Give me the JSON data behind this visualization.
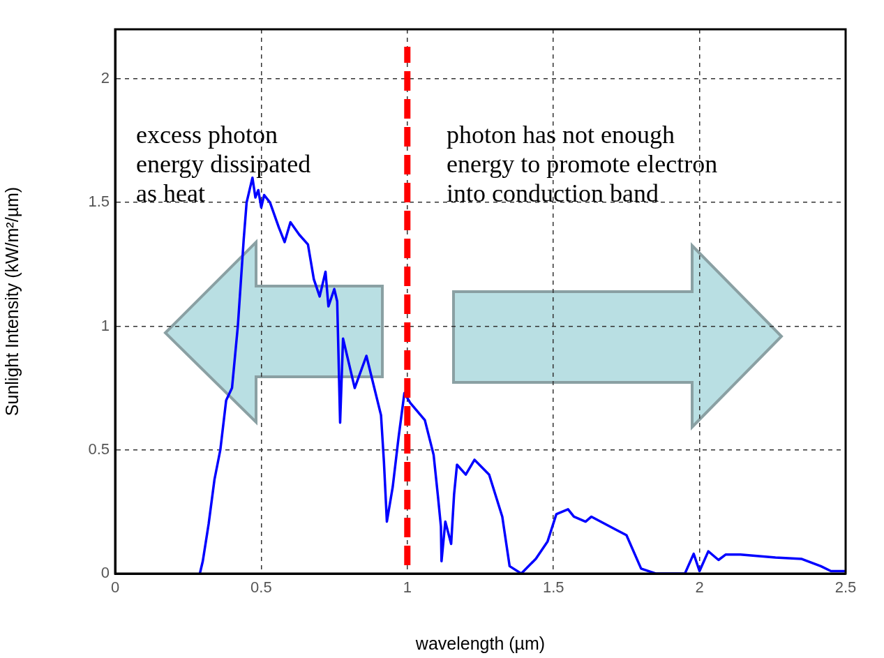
{
  "chart_data": {
    "type": "line",
    "xlabel": "wavelength (µm)",
    "ylabel": "Sunlight Intensity (kW/m²/µm)",
    "xlim": [
      0,
      2.5
    ],
    "xticks": [
      0,
      0.5,
      1,
      1.5,
      2,
      2.5
    ],
    "ylim": [
      0,
      2.2
    ],
    "yticks": [
      0,
      0.5,
      1,
      1.5,
      2
    ],
    "grid": true,
    "legend": false,
    "marker": "none",
    "line_style": "solid",
    "series": [
      {
        "color": "#0000ff",
        "x": [
          0.29,
          0.3,
          0.32,
          0.34,
          0.36,
          0.38,
          0.4,
          0.42,
          0.44,
          0.45,
          0.46,
          0.47,
          0.48,
          0.49,
          0.5,
          0.51,
          0.53,
          0.56,
          0.58,
          0.6,
          0.63,
          0.66,
          0.68,
          0.7,
          0.72,
          0.73,
          0.75,
          0.76,
          0.77,
          0.78,
          0.82,
          0.86,
          0.91,
          0.92,
          0.93,
          0.95,
          0.97,
          0.99,
          1.01,
          1.06,
          1.09,
          1.105,
          1.115,
          1.117,
          1.13,
          1.15,
          1.16,
          1.17,
          1.2,
          1.23,
          1.28,
          1.325,
          1.35,
          1.39,
          1.44,
          1.48,
          1.51,
          1.55,
          1.57,
          1.61,
          1.63,
          1.71,
          1.75,
          1.8,
          1.85,
          1.95,
          1.98,
          2.0,
          2.03,
          2.065,
          2.09,
          2.14,
          2.26,
          2.35,
          2.415,
          2.45,
          2.5
        ],
        "values": [
          0,
          0.05,
          0.2,
          0.38,
          0.5,
          0.7,
          0.75,
          1.0,
          1.35,
          1.5,
          1.55,
          1.6,
          1.52,
          1.55,
          1.48,
          1.53,
          1.5,
          1.4,
          1.34,
          1.42,
          1.37,
          1.33,
          1.19,
          1.12,
          1.22,
          1.08,
          1.15,
          1.1,
          0.61,
          0.95,
          0.75,
          0.88,
          0.64,
          0.45,
          0.21,
          0.35,
          0.55,
          0.73,
          0.69,
          0.62,
          0.48,
          0.31,
          0.19,
          0.05,
          0.21,
          0.12,
          0.32,
          0.44,
          0.4,
          0.46,
          0.4,
          0.23,
          0.03,
          0,
          0.06,
          0.13,
          0.24,
          0.26,
          0.23,
          0.21,
          0.23,
          0.18,
          0.155,
          0.02,
          0,
          0,
          0.08,
          0.01,
          0.09,
          0.055,
          0.077,
          0.077,
          0.065,
          0.059,
          0.03,
          0.01,
          0.01
        ]
      }
    ],
    "ref_lines": [
      {
        "axis": "x",
        "value": 1,
        "color": "#ff0000",
        "line_style": "dashed"
      }
    ],
    "annotations": [
      "excess photon\nenergy dissipated\nas heat",
      "photon has not enough\nenergy to promote electron\ninto conduction band"
    ]
  }
}
